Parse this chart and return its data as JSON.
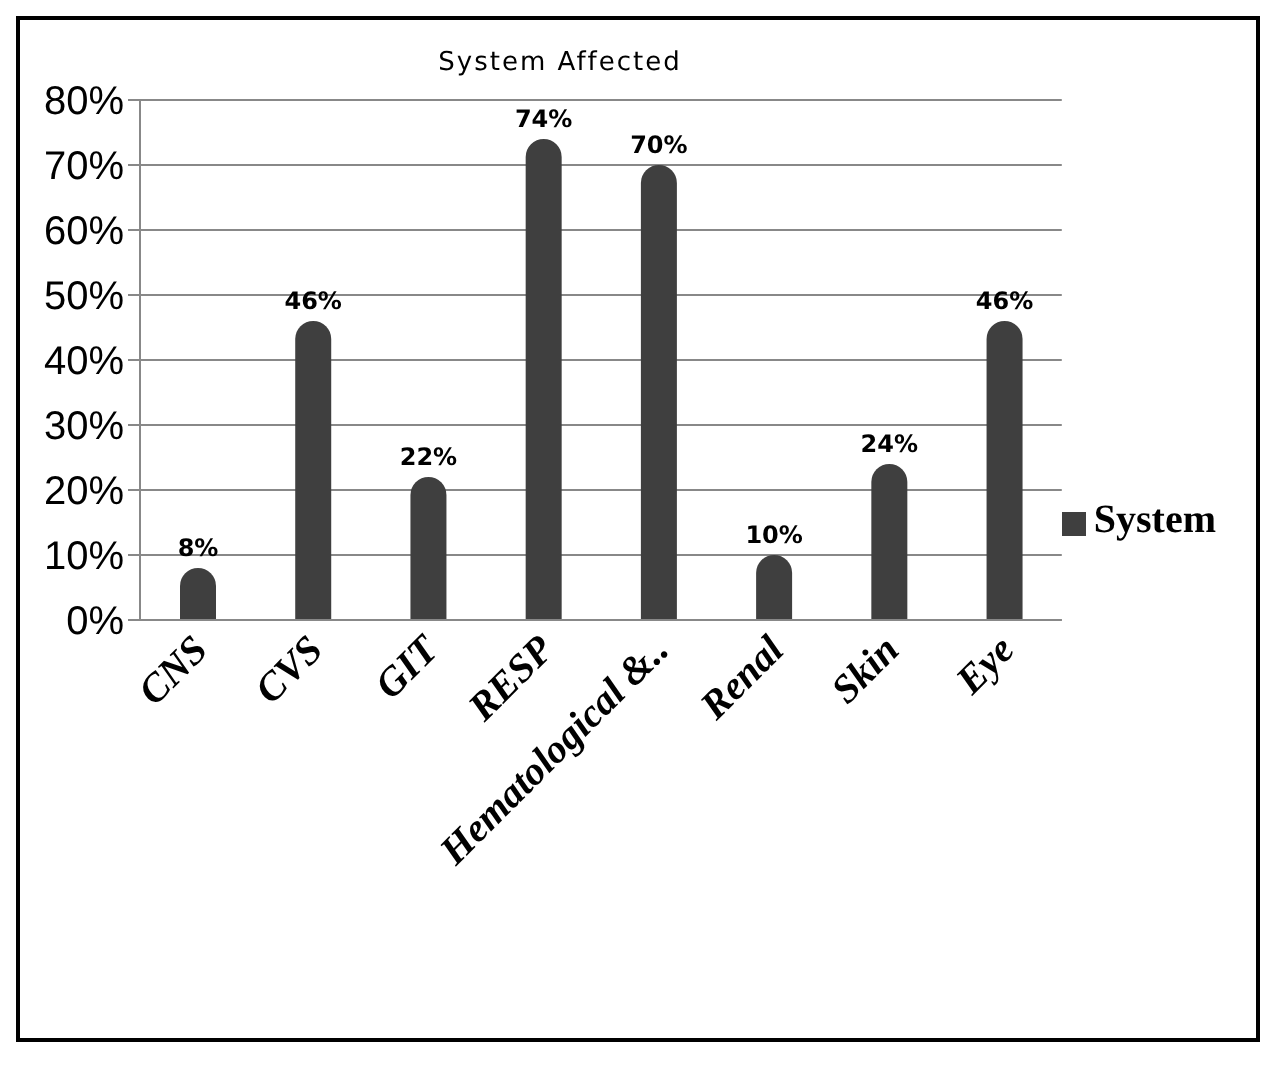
{
  "chart_data": {
    "type": "bar",
    "title": "System Affected",
    "categories": [
      "CNS",
      "CVS",
      "GIT",
      "RESP",
      "Hematological &..",
      "Renal",
      "Skin",
      "Eye"
    ],
    "series": [
      {
        "name": "System",
        "color": "#3f3f3f",
        "values": [
          8,
          46,
          22,
          74,
          70,
          10,
          24,
          46
        ],
        "value_labels": [
          "8%",
          "46%",
          "22%",
          "74%",
          "70%",
          "10%",
          "24%",
          "46%"
        ]
      }
    ],
    "ylim": [
      0,
      80
    ],
    "yticks": [
      {
        "value": 0,
        "label": "0%"
      },
      {
        "value": 10,
        "label": "10%"
      },
      {
        "value": 20,
        "label": "20%"
      },
      {
        "value": 30,
        "label": "30%"
      },
      {
        "value": 40,
        "label": "40%"
      },
      {
        "value": 50,
        "label": "50%"
      },
      {
        "value": 60,
        "label": "60%"
      },
      {
        "value": 70,
        "label": "70%"
      },
      {
        "value": 80,
        "label": "80%"
      }
    ],
    "grid": "y",
    "legend": "right"
  }
}
